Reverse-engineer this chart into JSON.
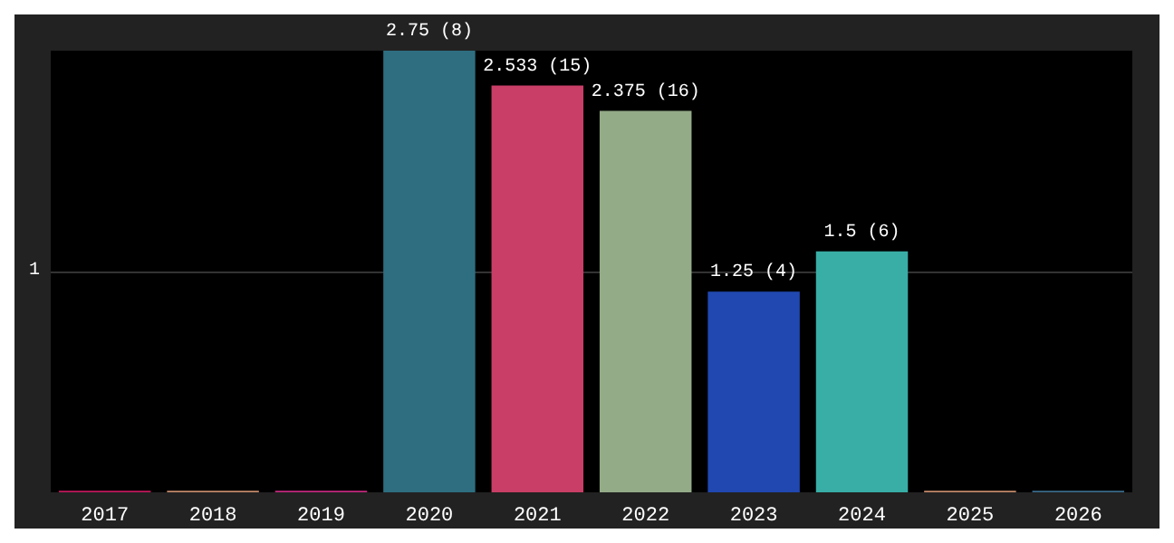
{
  "chart_data": {
    "type": "bar",
    "categories": [
      "2017",
      "2018",
      "2019",
      "2020",
      "2021",
      "2022",
      "2023",
      "2024",
      "2025",
      "2026"
    ],
    "values": [
      0.01,
      0.01,
      0.01,
      2.75,
      2.533,
      2.375,
      1.25,
      1.5,
      0.01,
      0.01
    ],
    "colors": [
      "#c2185b",
      "#c48a6a",
      "#c2287e",
      "#2e6e80",
      "#c83e66",
      "#94ab88",
      "#2048b0",
      "#38aea6",
      "#c48a6a",
      "#3a6a8a"
    ],
    "value_labels": [
      null,
      null,
      null,
      "2.75 (8)",
      "2.533 (15)",
      "2.375 (16)",
      "1.25 (4)",
      "1.5 (6)",
      null,
      null
    ],
    "ylim": [
      0,
      2.75
    ],
    "yticks": [
      {
        "value": 1.375,
        "label": "1"
      }
    ],
    "grid": "y"
  }
}
